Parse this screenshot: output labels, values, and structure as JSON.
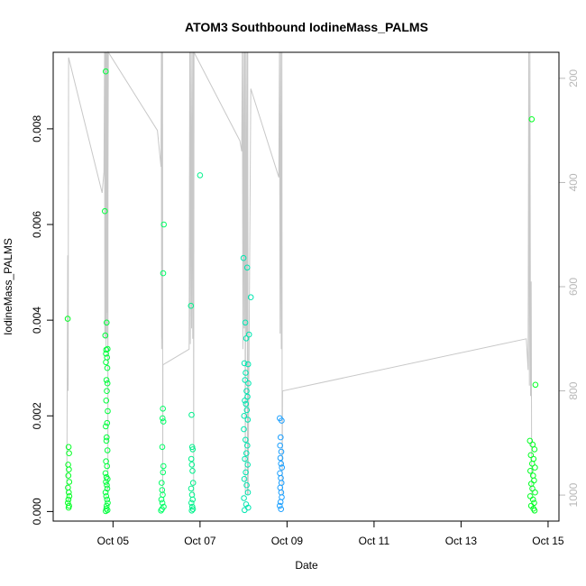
{
  "chart_data": {
    "type": "scatter",
    "title": "ATOM3 Southbound IodineMass_PALMS",
    "xlabel": "Date",
    "ylabel": "IodineMass_PALMS",
    "xlim": [
      "2017-10-03T15:00",
      "2017-10-15T06:00"
    ],
    "ylim": [
      -0.0002,
      0.0096
    ],
    "x_ticks": [
      {
        "label": "Oct 05",
        "value": "2017-10-05"
      },
      {
        "label": "Oct 07",
        "value": "2017-10-07"
      },
      {
        "label": "Oct 09",
        "value": "2017-10-09"
      },
      {
        "label": "Oct 11",
        "value": "2017-10-11"
      },
      {
        "label": "Oct 13",
        "value": "2017-10-13"
      },
      {
        "label": "Oct 15",
        "value": "2017-10-15"
      }
    ],
    "y_ticks": [
      {
        "label": "0.000",
        "value": 0
      },
      {
        "label": "0.002",
        "value": 0.002
      },
      {
        "label": "0.004",
        "value": 0.004
      },
      {
        "label": "0.006",
        "value": 0.006
      },
      {
        "label": "0.008",
        "value": 0.008
      }
    ],
    "y2_ticks": [
      {
        "label": "200",
        "value": 200
      },
      {
        "label": "400",
        "value": 400
      },
      {
        "label": "600",
        "value": 600
      },
      {
        "label": "800",
        "value": 800
      },
      {
        "label": "1000",
        "value": 1000
      }
    ],
    "y2_lim": [
      1050,
      150
    ],
    "y2_reversed": true,
    "altitude_color": "#c8c8c8",
    "point_colors": [
      "#00ff22",
      "#00ff3c",
      "#00ff66",
      "#00f28c",
      "#00e6b0",
      "#1a9fff"
    ],
    "grid": false,
    "legend": "none",
    "series": [
      {
        "points": [
          [
            "2017-10-03T23:00",
            0.00403
          ],
          [
            "2017-10-03T23:30",
            0.00135
          ],
          [
            "2017-10-03T23:45",
            0.00122
          ],
          [
            "2017-10-03T23:15",
            0.00098
          ],
          [
            "2017-10-03T23:40",
            0.00088
          ],
          [
            "2017-10-03T23:20",
            0.00075
          ],
          [
            "2017-10-03T23:50",
            0.00062
          ],
          [
            "2017-10-03T23:10",
            0.0005
          ],
          [
            "2017-10-03T23:35",
            0.0004
          ],
          [
            "2017-10-03T23:55",
            0.00032
          ],
          [
            "2017-10-03T23:25",
            0.00025
          ],
          [
            "2017-10-03T23:05",
            0.00018
          ],
          [
            "2017-10-03T23:45",
            0.00012
          ],
          [
            "2017-10-03T23:30",
            8e-05
          ]
        ]
      },
      {
        "points": [
          [
            "2017-10-04T20:00",
            0.0092
          ],
          [
            "2017-10-04T19:30",
            0.00628
          ],
          [
            "2017-10-04T20:30",
            0.00395
          ],
          [
            "2017-10-04T19:45",
            0.00368
          ],
          [
            "2017-10-04T20:15",
            0.00338
          ],
          [
            "2017-10-04T21:00",
            0.0034
          ],
          [
            "2017-10-04T20:10",
            0.0033
          ],
          [
            "2017-10-04T20:40",
            0.00322
          ],
          [
            "2017-10-04T20:05",
            0.00312
          ],
          [
            "2017-10-04T20:50",
            0.003
          ],
          [
            "2017-10-04T20:25",
            0.00275
          ],
          [
            "2017-10-04T20:55",
            0.00268
          ],
          [
            "2017-10-04T20:35",
            0.00252
          ],
          [
            "2017-10-04T20:15",
            0.00232
          ],
          [
            "2017-10-04T21:05",
            0.0021
          ],
          [
            "2017-10-04T20:45",
            0.00185
          ],
          [
            "2017-10-04T20:00",
            0.00178
          ],
          [
            "2017-10-04T20:30",
            0.00155
          ],
          [
            "2017-10-04T20:20",
            0.00148
          ],
          [
            "2017-10-04T20:55",
            0.00128
          ],
          [
            "2017-10-04T20:10",
            0.00105
          ],
          [
            "2017-10-04T20:40",
            0.00095
          ],
          [
            "2017-10-04T19:50",
            0.0008
          ],
          [
            "2017-10-04T20:25",
            0.00072
          ],
          [
            "2017-10-04T21:00",
            0.00068
          ],
          [
            "2017-10-04T20:05",
            0.00062
          ],
          [
            "2017-10-04T20:35",
            0.00055
          ],
          [
            "2017-10-04T20:50",
            0.00048
          ],
          [
            "2017-10-04T19:55",
            0.0004
          ],
          [
            "2017-10-04T20:15",
            0.00032
          ],
          [
            "2017-10-04T20:45",
            0.00025
          ],
          [
            "2017-10-04T21:05",
            0.00018
          ],
          [
            "2017-10-04T20:30",
            0.00012
          ],
          [
            "2017-10-04T20:20",
            6e-05
          ],
          [
            "2017-10-04T20:55",
            3e-05
          ],
          [
            "2017-10-04T20:00",
            1e-05
          ]
        ]
      },
      {
        "points": [
          [
            "2017-10-06T04:00",
            0.006
          ],
          [
            "2017-10-06T03:40",
            0.00498
          ],
          [
            "2017-10-06T03:30",
            0.00215
          ],
          [
            "2017-10-06T03:20",
            0.00195
          ],
          [
            "2017-10-06T03:45",
            0.00188
          ],
          [
            "2017-10-06T03:10",
            0.00135
          ],
          [
            "2017-10-06T03:50",
            0.00095
          ],
          [
            "2017-10-06T03:35",
            0.00082
          ],
          [
            "2017-10-06T02:50",
            0.0006
          ],
          [
            "2017-10-06T03:05",
            0.00045
          ],
          [
            "2017-10-06T03:25",
            0.00035
          ],
          [
            "2017-10-06T02:40",
            0.00025
          ],
          [
            "2017-10-06T03:15",
            0.00018
          ],
          [
            "2017-10-06T03:55",
            0.0001
          ],
          [
            "2017-10-06T03:00",
            5e-05
          ],
          [
            "2017-10-06T02:30",
            2e-05
          ]
        ]
      },
      {
        "points": [
          [
            "2017-10-07T00:00",
            0.00703
          ],
          [
            "2017-10-06T19:00",
            0.0043
          ],
          [
            "2017-10-06T19:20",
            0.00202
          ],
          [
            "2017-10-06T19:40",
            0.00135
          ],
          [
            "2017-10-06T20:00",
            0.0013
          ],
          [
            "2017-10-06T19:10",
            0.0011
          ],
          [
            "2017-10-06T19:30",
            0.00098
          ],
          [
            "2017-10-06T19:50",
            0.00085
          ],
          [
            "2017-10-06T20:10",
            0.0006
          ],
          [
            "2017-10-06T19:05",
            0.00048
          ],
          [
            "2017-10-06T19:35",
            0.00035
          ],
          [
            "2017-10-06T19:55",
            0.00025
          ],
          [
            "2017-10-06T19:15",
            0.00018
          ],
          [
            "2017-10-06T19:45",
            0.0001
          ],
          [
            "2017-10-06T20:05",
            5e-05
          ],
          [
            "2017-10-06T19:25",
            2e-05
          ]
        ]
      },
      {
        "points": [
          [
            "2017-10-08T00:00",
            0.0053
          ],
          [
            "2017-10-08T02:00",
            0.0051
          ],
          [
            "2017-10-08T04:00",
            0.00448
          ],
          [
            "2017-10-08T01:00",
            0.00395
          ],
          [
            "2017-10-08T03:00",
            0.0037
          ],
          [
            "2017-10-08T01:30",
            0.00362
          ],
          [
            "2017-10-08T00:30",
            0.0031
          ],
          [
            "2017-10-08T02:30",
            0.00308
          ],
          [
            "2017-10-08T01:10",
            0.0029
          ],
          [
            "2017-10-08T00:50",
            0.00275
          ],
          [
            "2017-10-08T02:40",
            0.00268
          ],
          [
            "2017-10-08T01:40",
            0.00252
          ],
          [
            "2017-10-08T02:10",
            0.0024
          ],
          [
            "2017-10-08T00:40",
            0.00232
          ],
          [
            "2017-10-08T01:20",
            0.00225
          ],
          [
            "2017-10-08T01:50",
            0.00212
          ],
          [
            "2017-10-08T00:20",
            0.002
          ],
          [
            "2017-10-08T02:20",
            0.00192
          ],
          [
            "2017-10-08T00:10",
            0.00172
          ],
          [
            "2017-10-08T01:05",
            0.0015
          ],
          [
            "2017-10-08T02:05",
            0.00138
          ],
          [
            "2017-10-08T01:35",
            0.00122
          ],
          [
            "2017-10-08T00:45",
            0.0011
          ],
          [
            "2017-10-08T02:15",
            0.00098
          ],
          [
            "2017-10-08T01:15",
            0.00082
          ],
          [
            "2017-10-08T00:25",
            0.00068
          ],
          [
            "2017-10-08T01:45",
            0.00055
          ],
          [
            "2017-10-08T02:25",
            0.0004
          ],
          [
            "2017-10-08T00:15",
            0.00028
          ],
          [
            "2017-10-08T01:25",
            0.00015
          ],
          [
            "2017-10-08T02:35",
            8e-05
          ],
          [
            "2017-10-08T00:35",
            3e-05
          ]
        ]
      },
      {
        "points": [
          [
            "2017-10-08T20:00",
            0.00195
          ],
          [
            "2017-10-08T21:00",
            0.0019
          ],
          [
            "2017-10-08T20:30",
            0.00155
          ],
          [
            "2017-10-08T20:10",
            0.00138
          ],
          [
            "2017-10-08T20:50",
            0.00125
          ],
          [
            "2017-10-08T20:20",
            0.00112
          ],
          [
            "2017-10-08T20:40",
            0.001
          ],
          [
            "2017-10-08T21:10",
            0.00092
          ],
          [
            "2017-10-08T20:05",
            0.0008
          ],
          [
            "2017-10-08T20:35",
            0.0007
          ],
          [
            "2017-10-08T20:55",
            0.0006
          ],
          [
            "2017-10-08T20:15",
            0.0005
          ],
          [
            "2017-10-08T20:45",
            0.0004
          ],
          [
            "2017-10-08T21:05",
            0.0003
          ],
          [
            "2017-10-08T20:25",
            0.0002
          ],
          [
            "2017-10-08T20:00",
            0.00012
          ],
          [
            "2017-10-08T20:40",
            5e-05
          ]
        ]
      },
      {
        "points": [
          [
            "2017-10-14T15:00",
            0.0082
          ],
          [
            "2017-10-14T17:00",
            0.00265
          ],
          [
            "2017-10-14T14:00",
            0.00148
          ],
          [
            "2017-10-14T15:30",
            0.0014
          ],
          [
            "2017-10-14T16:30",
            0.0013
          ],
          [
            "2017-10-14T14:30",
            0.00118
          ],
          [
            "2017-10-14T16:00",
            0.0011
          ],
          [
            "2017-10-14T15:15",
            0.001
          ],
          [
            "2017-10-14T16:45",
            0.00092
          ],
          [
            "2017-10-14T14:15",
            0.00085
          ],
          [
            "2017-10-14T15:45",
            0.00075
          ],
          [
            "2017-10-14T16:15",
            0.00065
          ],
          [
            "2017-10-14T14:45",
            0.00058
          ],
          [
            "2017-10-14T15:20",
            0.00048
          ],
          [
            "2017-10-14T16:50",
            0.0004
          ],
          [
            "2017-10-14T14:10",
            0.00032
          ],
          [
            "2017-10-14T15:40",
            0.00025
          ],
          [
            "2017-10-14T16:20",
            0.00018
          ],
          [
            "2017-10-14T14:40",
            0.00012
          ],
          [
            "2017-10-14T15:55",
            6e-05
          ],
          [
            "2017-10-14T16:35",
            2e-05
          ]
        ]
      }
    ],
    "altitude_trace": [
      [
        "2017-10-03T22:30",
        1000
      ],
      [
        "2017-10-03T23:00",
        540
      ],
      [
        "2017-10-03T23:15",
        800
      ],
      [
        "2017-10-03T23:20",
        480
      ],
      [
        "2017-10-03T23:30",
        160
      ],
      [
        "2017-10-04T18:00",
        420
      ],
      [
        "2017-10-04T19:00",
        380
      ],
      [
        "2017-10-04T19:20",
        150
      ],
      [
        "2017-10-04T19:30",
        700
      ],
      [
        "2017-10-04T19:40",
        150
      ],
      [
        "2017-10-04T19:50",
        690
      ],
      [
        "2017-10-04T20:00",
        150
      ],
      [
        "2017-10-04T20:10",
        720
      ],
      [
        "2017-10-04T20:20",
        150
      ],
      [
        "2017-10-04T20:30",
        700
      ],
      [
        "2017-10-04T20:40",
        150
      ],
      [
        "2017-10-04T20:50",
        650
      ],
      [
        "2017-10-04T21:00",
        150
      ],
      [
        "2017-10-04T21:10",
        1000
      ],
      [
        "2017-10-04T21:15",
        390
      ],
      [
        "2017-10-04T21:25",
        150
      ],
      [
        "2017-10-06T00:30",
        300
      ],
      [
        "2017-10-06T02:30",
        370
      ],
      [
        "2017-10-06T02:40",
        150
      ],
      [
        "2017-10-06T02:50",
        720
      ],
      [
        "2017-10-06T03:00",
        150
      ],
      [
        "2017-10-06T03:10",
        700
      ],
      [
        "2017-10-06T03:20",
        150
      ],
      [
        "2017-10-06T03:25",
        1000
      ],
      [
        "2017-10-06T03:30",
        750
      ],
      [
        "2017-10-06T18:00",
        720
      ],
      [
        "2017-10-06T18:20",
        150
      ],
      [
        "2017-10-06T18:40",
        710
      ],
      [
        "2017-10-06T19:00",
        150
      ],
      [
        "2017-10-06T19:20",
        680
      ],
      [
        "2017-10-06T19:40",
        150
      ],
      [
        "2017-10-06T20:00",
        700
      ],
      [
        "2017-10-06T20:20",
        150
      ],
      [
        "2017-10-06T20:30",
        1000
      ],
      [
        "2017-10-06T20:40",
        150
      ],
      [
        "2017-10-07T22:00",
        320
      ],
      [
        "2017-10-07T23:00",
        340
      ],
      [
        "2017-10-07T23:20",
        150
      ],
      [
        "2017-10-07T23:40",
        720
      ],
      [
        "2017-10-08T00:00",
        150
      ],
      [
        "2017-10-08T00:20",
        680
      ],
      [
        "2017-10-08T00:40",
        150
      ],
      [
        "2017-10-08T01:00",
        1000
      ],
      [
        "2017-10-08T01:20",
        150
      ],
      [
        "2017-10-08T01:40",
        690
      ],
      [
        "2017-10-08T02:00",
        150
      ],
      [
        "2017-10-08T02:10",
        1000
      ],
      [
        "2017-10-08T02:20",
        150
      ],
      [
        "2017-10-08T02:30",
        1000
      ],
      [
        "2017-10-08T04:00",
        220
      ],
      [
        "2017-10-08T19:30",
        390
      ],
      [
        "2017-10-08T19:50",
        150
      ],
      [
        "2017-10-08T20:10",
        690
      ],
      [
        "2017-10-08T20:30",
        150
      ],
      [
        "2017-10-08T20:50",
        720
      ],
      [
        "2017-10-08T21:10",
        150
      ],
      [
        "2017-10-08T21:20",
        1000
      ],
      [
        "2017-10-08T21:30",
        800
      ],
      [
        "2017-10-14T12:00",
        700
      ],
      [
        "2017-10-14T13:00",
        760
      ],
      [
        "2017-10-14T13:20",
        150
      ],
      [
        "2017-10-14T13:40",
        790
      ],
      [
        "2017-10-14T14:00",
        150
      ],
      [
        "2017-10-14T14:20",
        810
      ],
      [
        "2017-10-14T14:40",
        590
      ],
      [
        "2017-10-14T15:00",
        1000
      ]
    ]
  }
}
